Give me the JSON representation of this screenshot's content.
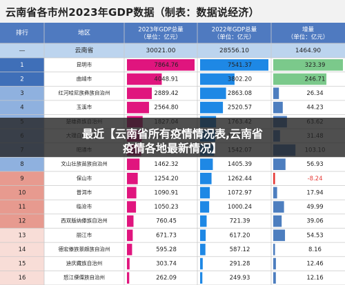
{
  "title": "云南省各市州2023年GDP数据（制表：数据说经济）",
  "overlay": {
    "line1": "最近【云南省所有疫情情况表,云南省",
    "line2": "疫情各地最新情况】"
  },
  "chart_data": {
    "type": "table",
    "columns": [
      "排行",
      "地区",
      "2023年GDP总量（单位：亿元）",
      "2022年GDP总量（单位：亿元）",
      "增量（单位：亿元）"
    ],
    "province_row": {
      "rank": "—",
      "region": "云南省",
      "gdp_2023": "30021.00",
      "gdp_2022": "28556.10",
      "increase": "1464.90"
    },
    "rows": [
      {
        "rank": "1",
        "region": "昆明市",
        "gdp_2023": "7864.76",
        "gdp_2022": "7541.37",
        "increase": "323.39"
      },
      {
        "rank": "2",
        "region": "曲靖市",
        "gdp_2023": "4048.91",
        "gdp_2022": "3802.20",
        "increase": "246.71"
      },
      {
        "rank": "3",
        "region": "红河哈尼族彝族自治州",
        "gdp_2023": "2889.42",
        "gdp_2022": "2863.08",
        "increase": "26.34"
      },
      {
        "rank": "4",
        "region": "玉溪市",
        "gdp_2023": "2564.80",
        "gdp_2022": "2520.57",
        "increase": "44.23"
      },
      {
        "rank": "5",
        "region": "楚雄彝族自治州",
        "gdp_2023": "1827.04",
        "gdp_2022": "1763.42",
        "increase": "63.62"
      },
      {
        "rank": "6",
        "region": "大理白族自治州",
        "gdp_2023": "1706.49",
        "gdp_2022": "1675.01",
        "increase": "31.48"
      },
      {
        "rank": "7",
        "region": "昭通市",
        "gdp_2023": "1645.17",
        "gdp_2022": "1542.07",
        "increase": "103.10"
      },
      {
        "rank": "8",
        "region": "文山壮族苗族自治州",
        "gdp_2023": "1462.32",
        "gdp_2022": "1405.39",
        "increase": "56.93"
      },
      {
        "rank": "9",
        "region": "保山市",
        "gdp_2023": "1254.20",
        "gdp_2022": "1262.44",
        "increase": "-8.24"
      },
      {
        "rank": "10",
        "region": "普洱市",
        "gdp_2023": "1090.91",
        "gdp_2022": "1072.97",
        "increase": "17.94"
      },
      {
        "rank": "11",
        "region": "临沧市",
        "gdp_2023": "1050.23",
        "gdp_2022": "1000.24",
        "increase": "49.99"
      },
      {
        "rank": "12",
        "region": "西双版纳傣族自治州",
        "gdp_2023": "760.45",
        "gdp_2022": "721.39",
        "increase": "39.06"
      },
      {
        "rank": "13",
        "region": "丽江市",
        "gdp_2023": "671.73",
        "gdp_2022": "617.20",
        "increase": "54.53"
      },
      {
        "rank": "14",
        "region": "德宏傣族景颇族自治州",
        "gdp_2023": "595.28",
        "gdp_2022": "587.12",
        "increase": "8.16"
      },
      {
        "rank": "15",
        "region": "迪庆藏族自治州",
        "gdp_2023": "303.74",
        "gdp_2022": "291.28",
        "increase": "12.46"
      },
      {
        "rank": "16",
        "region": "怒江傈僳族自治州",
        "gdp_2023": "262.09",
        "gdp_2022": "249.93",
        "increase": "12.16"
      }
    ]
  },
  "colors": {
    "header_bg": "#4f7ac0",
    "province_bg": "#bcd4ee",
    "rank_top_bg": "#3f6fb8",
    "rank_mid_bg": "#8fb1df",
    "rank_low_bg": "#e79a8f",
    "rank_bottom_bg": "#f8ddd7",
    "bar_2023": "#e0157e",
    "bar_2022": "#1e88e5",
    "bar_increase": "#4d7ebf",
    "bar_increase_top": "#7bc98b",
    "bar_negative": "#e53935",
    "grid": "#c9c9c9"
  }
}
